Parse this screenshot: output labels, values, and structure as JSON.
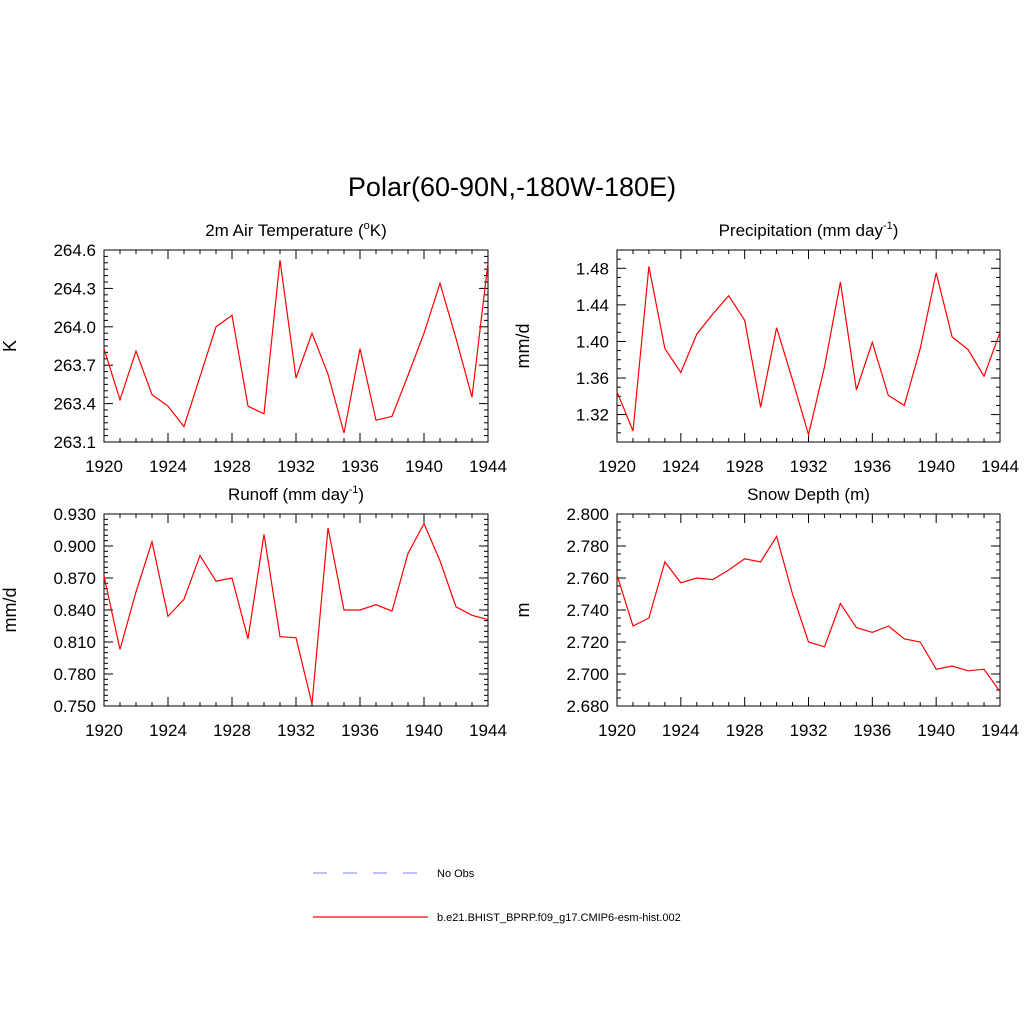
{
  "figure_title": "Polar(60-90N,-180W-180E)",
  "legend": [
    {
      "label": "No Obs",
      "color": "#9999ff",
      "style": "dashed"
    },
    {
      "label": "b.e21.BHIST_BPRP.f09_g17.CMIP6-esm-hist.002",
      "color": "#ff0000",
      "style": "solid"
    }
  ],
  "chart_data": [
    {
      "type": "line",
      "title_main": "2m Air Temperature (",
      "title_sup": "o",
      "title_rest": "K)",
      "ylabel": "K",
      "xlim": [
        1920,
        1944
      ],
      "ylim": [
        263.1,
        264.6
      ],
      "xticks": [
        1920,
        1924,
        1928,
        1932,
        1936,
        1940,
        1944
      ],
      "yticks": [
        "263.1",
        "263.4",
        "263.7",
        "264.0",
        "264.3",
        "264.6"
      ],
      "yminor": 0.05,
      "x": [
        1920,
        1921,
        1922,
        1923,
        1924,
        1925,
        1926,
        1927,
        1928,
        1929,
        1930,
        1931,
        1932,
        1933,
        1934,
        1935,
        1936,
        1937,
        1938,
        1939,
        1940,
        1941,
        1942,
        1943,
        1944
      ],
      "series": [
        {
          "name": "b.e21.BHIST_BPRP.f09_g17.CMIP6-esm-hist.002",
          "color": "#ff0000",
          "values": [
            263.83,
            263.43,
            263.81,
            263.47,
            263.38,
            263.22,
            263.61,
            264.0,
            264.09,
            263.38,
            263.32,
            264.52,
            263.6,
            263.95,
            263.63,
            263.17,
            263.83,
            263.27,
            263.3,
            263.62,
            263.95,
            264.34,
            263.91,
            263.45,
            264.5
          ]
        }
      ]
    },
    {
      "type": "line",
      "title_main": "Precipitation (mm day",
      "title_sup": "-1",
      "title_rest": ")",
      "ylabel": "mm/d",
      "xlim": [
        1920,
        1944
      ],
      "ylim": [
        1.29,
        1.5
      ],
      "xticks": [
        1920,
        1924,
        1928,
        1932,
        1936,
        1940,
        1944
      ],
      "yticks": [
        "1.32",
        "1.36",
        "1.40",
        "1.44",
        "1.48"
      ],
      "yminor": 0.01,
      "x": [
        1920,
        1921,
        1922,
        1923,
        1924,
        1925,
        1926,
        1927,
        1928,
        1929,
        1930,
        1931,
        1932,
        1933,
        1934,
        1935,
        1936,
        1937,
        1938,
        1939,
        1940,
        1941,
        1942,
        1943,
        1944
      ],
      "series": [
        {
          "name": "b.e21.BHIST_BPRP.f09_g17.CMIP6-esm-hist.002",
          "color": "#ff0000",
          "values": [
            1.345,
            1.302,
            1.482,
            1.392,
            1.366,
            1.408,
            1.43,
            1.45,
            1.423,
            1.328,
            1.415,
            1.358,
            1.298,
            1.372,
            1.465,
            1.347,
            1.399,
            1.341,
            1.33,
            1.392,
            1.475,
            1.405,
            1.391,
            1.362,
            1.41
          ]
        }
      ]
    },
    {
      "type": "line",
      "title_main": "Runoff (mm day",
      "title_sup": "-1",
      "title_rest": ")",
      "ylabel": "mm/d",
      "xlim": [
        1920,
        1944
      ],
      "ylim": [
        0.75,
        0.93
      ],
      "xticks": [
        1920,
        1924,
        1928,
        1932,
        1936,
        1940,
        1944
      ],
      "yticks": [
        "0.750",
        "0.780",
        "0.810",
        "0.840",
        "0.870",
        "0.900",
        "0.930"
      ],
      "yminor": 0.005,
      "x": [
        1920,
        1921,
        1922,
        1923,
        1924,
        1925,
        1926,
        1927,
        1928,
        1929,
        1930,
        1931,
        1932,
        1933,
        1934,
        1935,
        1936,
        1937,
        1938,
        1939,
        1940,
        1941,
        1942,
        1943,
        1944
      ],
      "series": [
        {
          "name": "b.e21.BHIST_BPRP.f09_g17.CMIP6-esm-hist.002",
          "color": "#ff0000",
          "values": [
            0.872,
            0.803,
            0.857,
            0.904,
            0.834,
            0.85,
            0.891,
            0.867,
            0.87,
            0.813,
            0.911,
            0.815,
            0.814,
            0.752,
            0.917,
            0.84,
            0.84,
            0.845,
            0.839,
            0.893,
            0.921,
            0.886,
            0.843,
            0.835,
            0.831
          ]
        }
      ]
    },
    {
      "type": "line",
      "title_main": "Snow Depth (m)",
      "title_sup": "",
      "title_rest": "",
      "ylabel": "m",
      "xlim": [
        1920,
        1944
      ],
      "ylim": [
        2.68,
        2.8
      ],
      "xticks": [
        1920,
        1924,
        1928,
        1932,
        1936,
        1940,
        1944
      ],
      "yticks": [
        "2.680",
        "2.700",
        "2.720",
        "2.740",
        "2.760",
        "2.780",
        "2.800"
      ],
      "yminor": 0.005,
      "x": [
        1920,
        1921,
        1922,
        1923,
        1924,
        1925,
        1926,
        1927,
        1928,
        1929,
        1930,
        1931,
        1932,
        1933,
        1934,
        1935,
        1936,
        1937,
        1938,
        1939,
        1940,
        1941,
        1942,
        1943,
        1944
      ],
      "series": [
        {
          "name": "b.e21.BHIST_BPRP.f09_g17.CMIP6-esm-hist.002",
          "color": "#ff0000",
          "values": [
            2.762,
            2.73,
            2.735,
            2.77,
            2.757,
            2.76,
            2.759,
            2.765,
            2.772,
            2.77,
            2.786,
            2.75,
            2.72,
            2.717,
            2.744,
            2.729,
            2.726,
            2.73,
            2.722,
            2.72,
            2.703,
            2.705,
            2.702,
            2.703,
            2.689
          ]
        }
      ]
    }
  ]
}
